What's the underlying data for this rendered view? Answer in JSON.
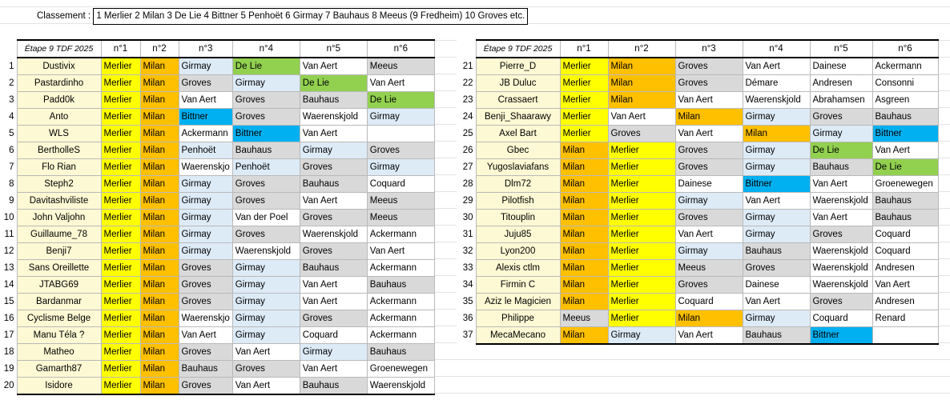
{
  "header": {
    "label": "Classement :",
    "ranking": "1 Merlier 2 Milan 3 De Lie 4 Bittner 5 Penhoët 6 Girmay 7 Bauhaus 8 Meeus (9 Fredheim) 10 Groves etc."
  },
  "columns": [
    "Étape 9 TDF 2025",
    "n°1",
    "n°2",
    "n°3",
    "n°4",
    "n°5",
    "n°6"
  ],
  "left_rows": [
    {
      "n": "1",
      "name": "Dustivix",
      "p": [
        [
          "Merlier",
          "y"
        ],
        [
          "Milan",
          "o"
        ],
        [
          "Girmay",
          "b"
        ],
        [
          "De Lie",
          "gr"
        ],
        [
          "Van Aert",
          "w"
        ],
        [
          "Meeus",
          "g"
        ]
      ]
    },
    {
      "n": "2",
      "name": "Pastardinho",
      "p": [
        [
          "Merlier",
          "y"
        ],
        [
          "Milan",
          "o"
        ],
        [
          "Groves",
          "g"
        ],
        [
          "Girmay",
          "b"
        ],
        [
          "De Lie",
          "gr"
        ],
        [
          "Van Aert",
          "w"
        ]
      ]
    },
    {
      "n": "3",
      "name": "Padd0k",
      "p": [
        [
          "Merlier",
          "y"
        ],
        [
          "Milan",
          "o"
        ],
        [
          "Van Aert",
          "w"
        ],
        [
          "Groves",
          "g"
        ],
        [
          "Bauhaus",
          "g"
        ],
        [
          "De Lie",
          "gr"
        ]
      ]
    },
    {
      "n": "4",
      "name": "Anto",
      "p": [
        [
          "Merlier",
          "y"
        ],
        [
          "Milan",
          "o"
        ],
        [
          "Bittner",
          "bl"
        ],
        [
          "Groves",
          "g"
        ],
        [
          "Waerenskjold",
          "w"
        ],
        [
          "Girmay",
          "b"
        ]
      ]
    },
    {
      "n": "5",
      "name": "WLS",
      "p": [
        [
          "Merlier",
          "y"
        ],
        [
          "Milan",
          "o"
        ],
        [
          "Ackermann",
          "w"
        ],
        [
          "Bittner",
          "bl"
        ],
        [
          "Van Aert",
          "w"
        ],
        [
          "",
          "w"
        ]
      ]
    },
    {
      "n": "6",
      "name": "BertholleS",
      "p": [
        [
          "Merlier",
          "y"
        ],
        [
          "Milan",
          "o"
        ],
        [
          "Penhoët",
          "b"
        ],
        [
          "Bauhaus",
          "g"
        ],
        [
          "Girmay",
          "b"
        ],
        [
          "Groves",
          "g"
        ]
      ]
    },
    {
      "n": "7",
      "name": "Flo Rian",
      "p": [
        [
          "Merlier",
          "y"
        ],
        [
          "Milan",
          "o"
        ],
        [
          "Waerenskjo",
          "w"
        ],
        [
          "Penhoët",
          "b"
        ],
        [
          "Groves",
          "g"
        ],
        [
          "Girmay",
          "b"
        ]
      ]
    },
    {
      "n": "8",
      "name": "Steph2",
      "p": [
        [
          "Merlier",
          "y"
        ],
        [
          "Milan",
          "o"
        ],
        [
          "Girmay",
          "b"
        ],
        [
          "Groves",
          "g"
        ],
        [
          "Bauhaus",
          "g"
        ],
        [
          "Coquard",
          "w"
        ]
      ]
    },
    {
      "n": "9",
      "name": "Davitashviliste",
      "p": [
        [
          "Merlier",
          "y"
        ],
        [
          "Milan",
          "o"
        ],
        [
          "Girmay",
          "b"
        ],
        [
          "Groves",
          "g"
        ],
        [
          "Van Aert",
          "w"
        ],
        [
          "Meeus",
          "g"
        ]
      ]
    },
    {
      "n": "10",
      "name": "John Valjohn",
      "p": [
        [
          "Merlier",
          "y"
        ],
        [
          "Milan",
          "o"
        ],
        [
          "Girmay",
          "b"
        ],
        [
          "Van der Poel",
          "w"
        ],
        [
          "Groves",
          "g"
        ],
        [
          "Meeus",
          "g"
        ]
      ]
    },
    {
      "n": "11",
      "name": "Guillaume_78",
      "p": [
        [
          "Merlier",
          "y"
        ],
        [
          "Milan",
          "o"
        ],
        [
          "Girmay",
          "b"
        ],
        [
          "Groves",
          "g"
        ],
        [
          "Waerenskjold",
          "w"
        ],
        [
          "Ackermann",
          "w"
        ]
      ]
    },
    {
      "n": "12",
      "name": "Benji7",
      "p": [
        [
          "Merlier",
          "y"
        ],
        [
          "Milan",
          "o"
        ],
        [
          "Girmay",
          "b"
        ],
        [
          "Waerenskjold",
          "w"
        ],
        [
          "Groves",
          "g"
        ],
        [
          "Van Aert",
          "w"
        ]
      ]
    },
    {
      "n": "13",
      "name": "Sans Oreillette",
      "p": [
        [
          "Merlier",
          "y"
        ],
        [
          "Milan",
          "o"
        ],
        [
          "Groves",
          "g"
        ],
        [
          "Girmay",
          "b"
        ],
        [
          "Bauhaus",
          "g"
        ],
        [
          "Ackermann",
          "w"
        ]
      ]
    },
    {
      "n": "14",
      "name": "JTABG69",
      "p": [
        [
          "Merlier",
          "y"
        ],
        [
          "Milan",
          "o"
        ],
        [
          "Groves",
          "g"
        ],
        [
          "Girmay",
          "b"
        ],
        [
          "Van Aert",
          "w"
        ],
        [
          "Bauhaus",
          "g"
        ]
      ]
    },
    {
      "n": "15",
      "name": "Bardanmar",
      "p": [
        [
          "Merlier",
          "y"
        ],
        [
          "Milan",
          "o"
        ],
        [
          "Groves",
          "g"
        ],
        [
          "Girmay",
          "b"
        ],
        [
          "Van Aert",
          "w"
        ],
        [
          "Ackermann",
          "w"
        ]
      ]
    },
    {
      "n": "16",
      "name": "Cyclisme Belge",
      "p": [
        [
          "Merlier",
          "y"
        ],
        [
          "Milan",
          "o"
        ],
        [
          "Waerenskjo",
          "w"
        ],
        [
          "Girmay",
          "b"
        ],
        [
          "Groves",
          "g"
        ],
        [
          "Ackermann",
          "w"
        ]
      ]
    },
    {
      "n": "17",
      "name": "Manu Téla ?",
      "p": [
        [
          "Merlier",
          "y"
        ],
        [
          "Milan",
          "o"
        ],
        [
          "Van Aert",
          "w"
        ],
        [
          "Girmay",
          "b"
        ],
        [
          "Coquard",
          "w"
        ],
        [
          "Ackermann",
          "w"
        ]
      ]
    },
    {
      "n": "18",
      "name": "Matheo",
      "p": [
        [
          "Merlier",
          "y"
        ],
        [
          "Milan",
          "o"
        ],
        [
          "Groves",
          "g"
        ],
        [
          "Van Aert",
          "w"
        ],
        [
          "Girmay",
          "b"
        ],
        [
          "Bauhaus",
          "g"
        ]
      ]
    },
    {
      "n": "19",
      "name": "Gamarth87",
      "p": [
        [
          "Merlier",
          "y"
        ],
        [
          "Milan",
          "o"
        ],
        [
          "Bauhaus",
          "g"
        ],
        [
          "Groves",
          "g"
        ],
        [
          "Van Aert",
          "w"
        ],
        [
          "Groenewegen",
          "w"
        ]
      ]
    },
    {
      "n": "20",
      "name": "Isidore",
      "p": [
        [
          "Merlier",
          "y"
        ],
        [
          "Milan",
          "o"
        ],
        [
          "Groves",
          "g"
        ],
        [
          "Van Aert",
          "w"
        ],
        [
          "Bauhaus",
          "g"
        ],
        [
          "Waerenskjold",
          "w"
        ]
      ]
    }
  ],
  "right_rows": [
    {
      "n": "21",
      "name": "Pierre_D",
      "p": [
        [
          "Merlier",
          "y"
        ],
        [
          "Milan",
          "o"
        ],
        [
          "Groves",
          "g"
        ],
        [
          "Van Aert",
          "w"
        ],
        [
          "Dainese",
          "w"
        ],
        [
          "Ackermann",
          "w"
        ]
      ]
    },
    {
      "n": "22",
      "name": "JB Duluc",
      "p": [
        [
          "Merlier",
          "y"
        ],
        [
          "Milan",
          "o"
        ],
        [
          "Groves",
          "g"
        ],
        [
          "Démare",
          "w"
        ],
        [
          "Andresen",
          "w"
        ],
        [
          "Consonni",
          "w"
        ]
      ]
    },
    {
      "n": "23",
      "name": "Crassaert",
      "p": [
        [
          "Merlier",
          "y"
        ],
        [
          "Milan",
          "o"
        ],
        [
          "Van Aert",
          "w"
        ],
        [
          "Waerenskjold",
          "w"
        ],
        [
          "Abrahamsen",
          "w"
        ],
        [
          "Asgreen",
          "w"
        ]
      ]
    },
    {
      "n": "24",
      "name": "Benji_Shaarawy",
      "p": [
        [
          "Merlier",
          "y"
        ],
        [
          "Van Aert",
          "w"
        ],
        [
          "Milan",
          "o"
        ],
        [
          "Girmay",
          "b"
        ],
        [
          "Groves",
          "g"
        ],
        [
          "Bauhaus",
          "g"
        ]
      ]
    },
    {
      "n": "25",
      "name": "Axel Bart",
      "p": [
        [
          "Merlier",
          "y"
        ],
        [
          "Groves",
          "g"
        ],
        [
          "Van Aert",
          "w"
        ],
        [
          "Milan",
          "o"
        ],
        [
          "Girmay",
          "b"
        ],
        [
          "Bittner",
          "bl"
        ]
      ]
    },
    {
      "n": "26",
      "name": "Gbec",
      "p": [
        [
          "Milan",
          "o"
        ],
        [
          "Merlier",
          "y"
        ],
        [
          "Groves",
          "g"
        ],
        [
          "Girmay",
          "b"
        ],
        [
          "De Lie",
          "gr"
        ],
        [
          "Van Aert",
          "w"
        ]
      ]
    },
    {
      "n": "27",
      "name": "Yugoslaviafans",
      "p": [
        [
          "Milan",
          "o"
        ],
        [
          "Merlier",
          "y"
        ],
        [
          "Groves",
          "g"
        ],
        [
          "Girmay",
          "b"
        ],
        [
          "Bauhaus",
          "g"
        ],
        [
          "De Lie",
          "gr"
        ]
      ]
    },
    {
      "n": "28",
      "name": "Dlm72",
      "p": [
        [
          "Milan",
          "o"
        ],
        [
          "Merlier",
          "y"
        ],
        [
          "Dainese",
          "w"
        ],
        [
          "Bittner",
          "bl"
        ],
        [
          "Van Aert",
          "w"
        ],
        [
          "Groenewegen",
          "w"
        ]
      ]
    },
    {
      "n": "29",
      "name": "Pilotfish",
      "p": [
        [
          "Milan",
          "o"
        ],
        [
          "Merlier",
          "y"
        ],
        [
          "Girmay",
          "b"
        ],
        [
          "Van Aert",
          "w"
        ],
        [
          "Waerenskjold",
          "w"
        ],
        [
          "Bauhaus",
          "g"
        ]
      ]
    },
    {
      "n": "30",
      "name": "Titouplin",
      "p": [
        [
          "Milan",
          "o"
        ],
        [
          "Merlier",
          "y"
        ],
        [
          "Groves",
          "g"
        ],
        [
          "Girmay",
          "b"
        ],
        [
          "Van Aert",
          "w"
        ],
        [
          "Bauhaus",
          "g"
        ]
      ]
    },
    {
      "n": "31",
      "name": "Juju85",
      "p": [
        [
          "Milan",
          "o"
        ],
        [
          "Merlier",
          "y"
        ],
        [
          "Van Aert",
          "w"
        ],
        [
          "Girmay",
          "b"
        ],
        [
          "Groves",
          "g"
        ],
        [
          "Coquard",
          "w"
        ]
      ]
    },
    {
      "n": "32",
      "name": "Lyon200",
      "p": [
        [
          "Milan",
          "o"
        ],
        [
          "Merlier",
          "y"
        ],
        [
          "Girmay",
          "b"
        ],
        [
          "Bauhaus",
          "g"
        ],
        [
          "Waerenskjold",
          "w"
        ],
        [
          "Coquard",
          "w"
        ]
      ]
    },
    {
      "n": "33",
      "name": "Alexis ctlm",
      "p": [
        [
          "Milan",
          "o"
        ],
        [
          "Merlier",
          "y"
        ],
        [
          "Meeus",
          "g"
        ],
        [
          "Groves",
          "g"
        ],
        [
          "Waerenskjold",
          "w"
        ],
        [
          "Andresen",
          "w"
        ]
      ]
    },
    {
      "n": "34",
      "name": "Firmin C",
      "p": [
        [
          "Milan",
          "o"
        ],
        [
          "Merlier",
          "y"
        ],
        [
          "Groves",
          "g"
        ],
        [
          "Dainese",
          "w"
        ],
        [
          "Waerenskjold",
          "w"
        ],
        [
          "Van Aert",
          "w"
        ]
      ]
    },
    {
      "n": "35",
      "name": "Aziz le Magicien",
      "p": [
        [
          "Milan",
          "o"
        ],
        [
          "Merlier",
          "y"
        ],
        [
          "Coquard",
          "w"
        ],
        [
          "Van Aert",
          "w"
        ],
        [
          "Groves",
          "g"
        ],
        [
          "Andresen",
          "w"
        ]
      ]
    },
    {
      "n": "36",
      "name": "Philippe",
      "p": [
        [
          "Meeus",
          "g"
        ],
        [
          "Merlier",
          "y"
        ],
        [
          "Milan",
          "o"
        ],
        [
          "Girmay",
          "b"
        ],
        [
          "Coquard",
          "w"
        ],
        [
          "Renard",
          "w"
        ]
      ]
    },
    {
      "n": "37",
      "name": "MecaMecano",
      "p": [
        [
          "Milan",
          "o"
        ],
        [
          "Girmay",
          "b"
        ],
        [
          "Van Aert",
          "w"
        ],
        [
          "Bauhaus",
          "g"
        ],
        [
          "Bittner",
          "bl"
        ],
        [
          "",
          "w"
        ]
      ]
    }
  ]
}
